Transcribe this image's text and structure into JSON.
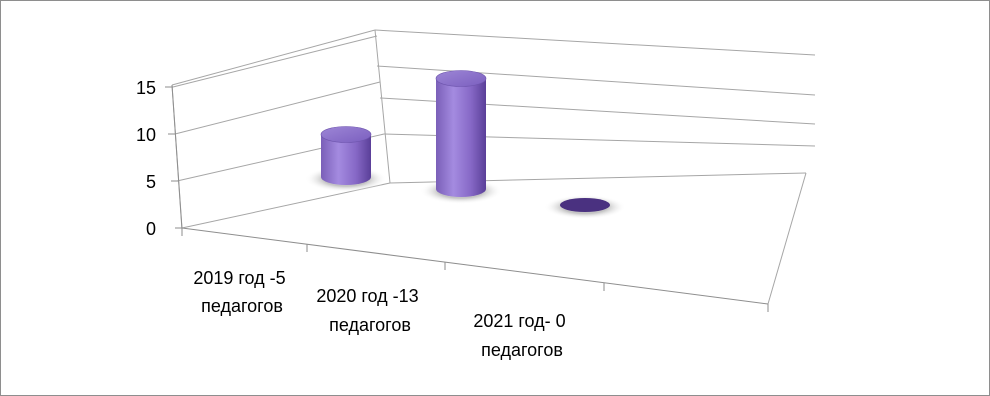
{
  "chart_data": {
    "type": "bar",
    "style": "3d-cylinder",
    "categories": [
      [
        "2019 год -5",
        "педагогов"
      ],
      [
        "2020 год -13",
        "педагогов"
      ],
      [
        "2021 год- 0",
        "педагогов"
      ]
    ],
    "values": [
      5,
      13,
      0
    ],
    "yticks": [
      "0",
      "5",
      "10",
      "15"
    ],
    "ylim": [
      0,
      20
    ],
    "grid": true,
    "legend": "none",
    "bar_color": "#8a6cc9",
    "bar_dark": "#4a3180",
    "grid_color": "#a6a6a6"
  }
}
